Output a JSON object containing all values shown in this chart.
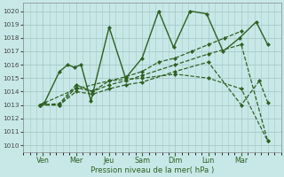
{
  "background_color": "#c8e8e8",
  "grid_color": "#a8c8c8",
  "line_color": "#2d6020",
  "xlabel": "Pression niveau de la mer( hPa )",
  "xlim": [
    0.0,
    7.8
  ],
  "ylim": [
    1009.5,
    1020.6
  ],
  "yticks": [
    1010,
    1011,
    1012,
    1013,
    1014,
    1015,
    1016,
    1017,
    1018,
    1019,
    1020
  ],
  "xtick_labels": [
    "Ven",
    "Mer",
    "Jeu",
    "Sam",
    "Dim",
    "Lun",
    "Mar"
  ],
  "xtick_positions": [
    0.6,
    1.6,
    2.6,
    3.6,
    4.6,
    5.6,
    6.6
  ],
  "series": [
    {
      "x": [
        0.5,
        0.65,
        1.1,
        1.35,
        1.55,
        1.75,
        2.05,
        2.6,
        3.1,
        3.6,
        4.1,
        4.55,
        5.05,
        5.55,
        6.05,
        6.55,
        7.05,
        7.4
      ],
      "y": [
        1013.0,
        1013.2,
        1015.5,
        1016.0,
        1015.8,
        1016.0,
        1013.3,
        1018.8,
        1015.0,
        1016.5,
        1020.0,
        1017.3,
        1020.0,
        1019.8,
        1017.0,
        1018.0,
        1019.2,
        1017.5
      ],
      "ls": "-",
      "lw": 1.0
    },
    {
      "x": [
        0.5,
        1.1,
        1.6,
        2.1,
        2.6,
        3.1,
        3.6,
        4.1,
        4.6,
        5.1,
        5.6,
        6.1,
        6.6
      ],
      "y": [
        1013.0,
        1013.1,
        1014.5,
        1014.0,
        1014.8,
        1015.1,
        1015.5,
        1016.2,
        1016.5,
        1017.0,
        1017.5,
        1018.0,
        1018.5
      ],
      "ls": "--",
      "lw": 0.9
    },
    {
      "x": [
        0.5,
        1.1,
        1.6,
        2.1,
        2.6,
        3.1,
        3.6,
        4.6,
        5.6,
        6.6,
        7.4
      ],
      "y": [
        1013.0,
        1013.0,
        1014.3,
        1014.0,
        1014.5,
        1014.8,
        1015.2,
        1016.0,
        1016.8,
        1017.5,
        1010.3
      ],
      "ls": "--",
      "lw": 0.9
    },
    {
      "x": [
        0.5,
        1.1,
        1.6,
        2.1,
        2.6,
        3.1,
        3.6,
        4.6,
        5.6,
        6.6,
        7.15,
        7.4
      ],
      "y": [
        1013.0,
        1013.0,
        1014.0,
        1013.8,
        1014.2,
        1014.5,
        1014.7,
        1015.5,
        1016.2,
        1013.0,
        1014.8,
        1013.2
      ],
      "ls": "--",
      "lw": 0.9
    },
    {
      "x": [
        0.5,
        1.6,
        2.6,
        3.6,
        4.6,
        5.6,
        6.6,
        7.4
      ],
      "y": [
        1013.0,
        1014.2,
        1014.8,
        1015.0,
        1015.3,
        1015.0,
        1014.2,
        1010.3
      ],
      "ls": "--",
      "lw": 0.85
    }
  ]
}
